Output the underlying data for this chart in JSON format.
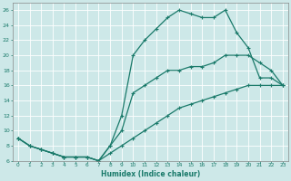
{
  "xlabel": "Humidex (Indice chaleur)",
  "bg_color": "#cde8e8",
  "grid_color": "#ffffff",
  "line_color": "#1a7a6a",
  "xlim": [
    -0.5,
    23.5
  ],
  "ylim": [
    6,
    27
  ],
  "xticks": [
    0,
    1,
    2,
    3,
    4,
    5,
    6,
    7,
    8,
    9,
    10,
    11,
    12,
    13,
    14,
    15,
    16,
    17,
    18,
    19,
    20,
    21,
    22,
    23
  ],
  "yticks": [
    6,
    8,
    10,
    12,
    14,
    16,
    18,
    20,
    22,
    24,
    26
  ],
  "line_top_x": [
    0,
    1,
    2,
    3,
    4,
    5,
    6,
    7,
    8,
    9,
    10,
    11,
    12,
    13,
    14,
    15,
    16,
    17,
    18,
    19,
    20,
    21,
    22,
    23
  ],
  "line_top_y": [
    9,
    8,
    7.5,
    7,
    6.5,
    6.5,
    6.5,
    6,
    8,
    12,
    20,
    22,
    23.5,
    25,
    26,
    25.5,
    25,
    25,
    26,
    23,
    21,
    17,
    17,
    16
  ],
  "line_mid_x": [
    0,
    1,
    2,
    3,
    4,
    5,
    6,
    7,
    8,
    9,
    10,
    11,
    12,
    13,
    14,
    15,
    16,
    17,
    18,
    19,
    20,
    21,
    22,
    23
  ],
  "line_mid_y": [
    9,
    8,
    7.5,
    7,
    6.5,
    6.5,
    6.5,
    6,
    8,
    10,
    15,
    16,
    17,
    18,
    18,
    18.5,
    18.5,
    19,
    20,
    20,
    20,
    19,
    18,
    16
  ],
  "line_bot_x": [
    0,
    1,
    2,
    3,
    4,
    5,
    6,
    7,
    8,
    9,
    10,
    11,
    12,
    13,
    14,
    15,
    16,
    17,
    18,
    19,
    20,
    21,
    22,
    23
  ],
  "line_bot_y": [
    9,
    8,
    7.5,
    7,
    6.5,
    6.5,
    6.5,
    6,
    7,
    8,
    9,
    10,
    11,
    12,
    13,
    13.5,
    14,
    14.5,
    15,
    15.5,
    16,
    16,
    16,
    16
  ]
}
